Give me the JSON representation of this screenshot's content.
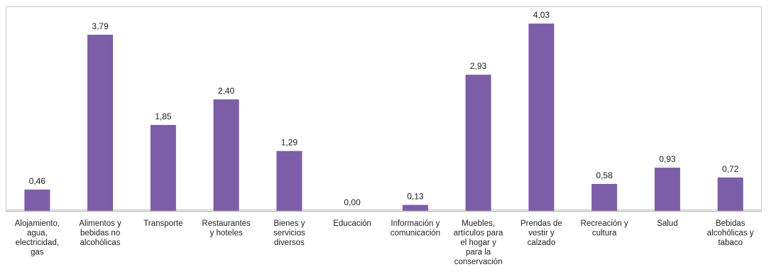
{
  "chart_data": {
    "type": "bar",
    "categories": [
      [
        "Alojamiento,",
        "agua,",
        "electricidad,",
        "gas"
      ],
      [
        "Alimentos y",
        "bebidas no",
        "alcohólicas"
      ],
      [
        "Transporte"
      ],
      [
        "Restaurantes",
        "y hoteles"
      ],
      [
        "Bienes y",
        "servicios",
        "diversos"
      ],
      [
        "Educación"
      ],
      [
        "Información y",
        "comunicación"
      ],
      [
        "Muebles,",
        "artículos para",
        "el hogar y",
        "para la",
        "conservación"
      ],
      [
        "Prendas de",
        "vestir y",
        "calzado"
      ],
      [
        "Recreación y",
        "cultura"
      ],
      [
        "Salud"
      ],
      [
        "Bebidas",
        "alcohólicas y",
        "tabaco"
      ]
    ],
    "values": [
      0.46,
      3.79,
      1.85,
      2.4,
      1.29,
      0.0,
      0.13,
      2.93,
      4.03,
      0.58,
      0.93,
      0.72
    ],
    "value_labels": [
      "0,46",
      "3,79",
      "1,85",
      "2,40",
      "1,29",
      "0,00",
      "0,13",
      "2,93",
      "4,03",
      "0,58",
      "0,93",
      "0,72"
    ],
    "ylim": [
      0,
      4.4
    ],
    "grid": false,
    "bar_color": "#7b5ea7",
    "axis_color": "#bdbdbd"
  }
}
